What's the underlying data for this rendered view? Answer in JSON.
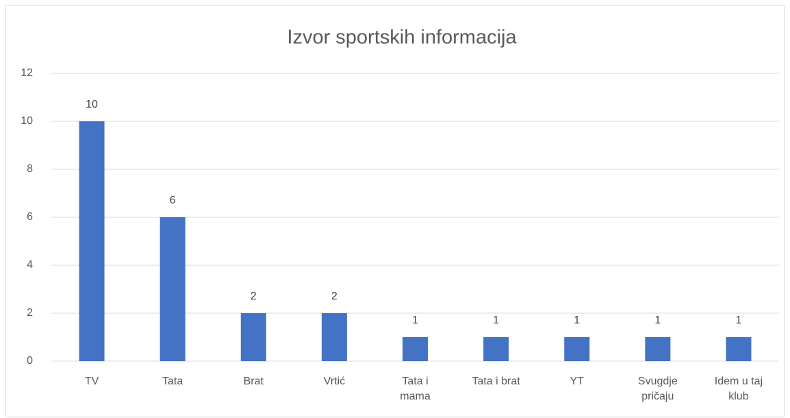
{
  "chart_data": {
    "type": "bar",
    "title": "Izvor sportskih informacija",
    "categories": [
      "TV",
      "Tata",
      "Brat",
      "Vrtić",
      "Tata i mama",
      "Tata i brat",
      "YT",
      "Svugdje pričaju",
      "Idem u taj klub"
    ],
    "values": [
      10,
      6,
      2,
      2,
      1,
      1,
      1,
      1,
      1
    ],
    "color": "#4472c4",
    "ylim": [
      0,
      12
    ],
    "yticks": [
      0,
      2,
      4,
      6,
      8,
      10,
      12
    ],
    "grid": true
  }
}
